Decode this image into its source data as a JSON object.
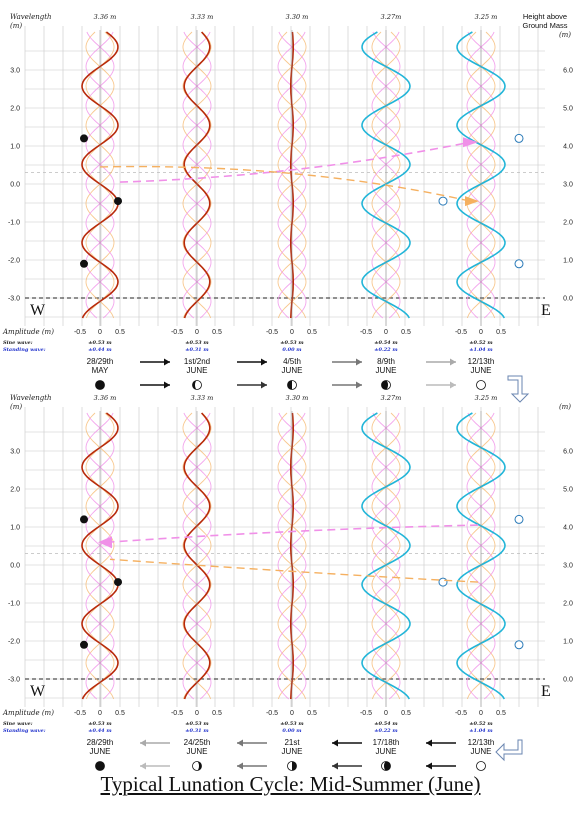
{
  "title": "Typical Lunation Cycle: Mid-Summer (June)",
  "axis": {
    "left_label": "Wavelength",
    "left_unit": "(m)",
    "right_label_line1": "Height above",
    "right_label_line2": "Ground Mass",
    "right_unit": "(m)",
    "left_ticks": [
      "3.0",
      "2.0",
      "1.0",
      "0.0",
      "-1.0",
      "-2.0",
      "-3.0"
    ],
    "right_ticks": [
      "6.0",
      "5.0",
      "4.0",
      "3.0",
      "2.0",
      "1.0",
      "0.0"
    ],
    "amp_label": "Amplitude (m)",
    "amp_ticks": [
      "-0.5",
      "0",
      "0.5"
    ],
    "sine_label": "Sine wave:",
    "standing_label": "Standing wave:",
    "west": "W",
    "east": "E"
  },
  "panels": [
    {
      "columns": [
        {
          "wavelength": "3.36 m",
          "amplitude": 0.45,
          "color": "#b82a0a",
          "sine": "±0.53 m",
          "standing": "±0.44 m",
          "date1": "28/29th",
          "date2": "MAY",
          "phase": "new"
        },
        {
          "wavelength": "3.33 m",
          "amplitude": 0.32,
          "color": "#b82a0a",
          "sine": "±0.53 m",
          "standing": "±0.31 m",
          "date1": "1st/2nd",
          "date2": "JUNE",
          "phase": "waxing-crescent"
        },
        {
          "wavelength": "3.30 m",
          "amplitude": 0.03,
          "color": "#b82a0a",
          "sine": "±0.53 m",
          "standing": "0.00 m",
          "date1": "4/5th",
          "date2": "JUNE",
          "phase": "first-quarter"
        },
        {
          "wavelength": "3.27m",
          "amplitude": 0.6,
          "color": "#22b5d8",
          "sine": "±0.54 m",
          "standing": "±0.22 m",
          "date1": "8/9th",
          "date2": "JUNE",
          "phase": "waxing-gibbous"
        },
        {
          "wavelength": "3.25 m",
          "amplitude": 0.6,
          "color": "#22b5d8",
          "sine": "±0.52 m",
          "standing": "±1.04 m",
          "date1": "12/13th",
          "date2": "JUNE",
          "phase": "full"
        }
      ]
    },
    {
      "columns": [
        {
          "wavelength": "3.36 m",
          "amplitude": 0.45,
          "color": "#b82a0a",
          "sine": "±0.53 m",
          "standing": "±0.44 m",
          "date1": "28/29th",
          "date2": "JUNE",
          "phase": "new"
        },
        {
          "wavelength": "3.33 m",
          "amplitude": 0.32,
          "color": "#b82a0a",
          "sine": "±0.53 m",
          "standing": "±0.31 m",
          "date1": "24/25th",
          "date2": "JUNE",
          "phase": "waning-crescent"
        },
        {
          "wavelength": "3.30 m",
          "amplitude": 0.03,
          "color": "#b82a0a",
          "sine": "±0.53 m",
          "standing": "0.00 m",
          "date1": "21st",
          "date2": "JUNE",
          "phase": "last-quarter"
        },
        {
          "wavelength": "3.27m",
          "amplitude": 0.6,
          "color": "#22b5d8",
          "sine": "±0.54 m",
          "standing": "±0.22 m",
          "date1": "17/18th",
          "date2": "JUNE",
          "phase": "waning-gibbous"
        },
        {
          "wavelength": "3.25 m",
          "amplitude": 0.6,
          "color": "#22b5d8",
          "sine": "±0.52 m",
          "standing": "±1.04 m",
          "date1": "12/13th",
          "date2": "JUNE",
          "phase": "full"
        }
      ]
    }
  ],
  "colors": {
    "grid": "#c8c8c8",
    "red_wave": "#b82a0a",
    "blue_wave": "#22b5d8",
    "pink": "#f090e8",
    "orange": "#f5b060"
  }
}
